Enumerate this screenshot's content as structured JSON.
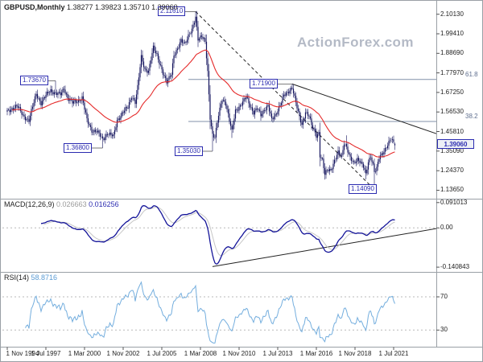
{
  "header": {
    "symbol": "GBPUSD,Monthly",
    "ohlc_text": "1.38277 1.39823 1.35710 1.39060"
  },
  "watermark": "ActionForex.com",
  "colors": {
    "candle": "#14145e",
    "ma_red": "#e52b2b",
    "macd_main": "#141499",
    "macd_signal": "#c6c6c6",
    "rsi_line": "#74aede",
    "fib_line": "#8090a8",
    "trendline": "#222222",
    "grid_dash": "#b8b8b8",
    "axis_line": "#9aa0a6",
    "label_blue": "#2b2bb0"
  },
  "chart_data": {
    "type": "candlestick",
    "symbol": "GBPUSD",
    "timeframe": "Monthly",
    "x_start": "1994-11",
    "x_end": "2021-08",
    "months_total": 322,
    "x_ticks": [
      {
        "label": "1 Nov 1994",
        "m": 0
      },
      {
        "label": "1 Jul 1997",
        "m": 32
      },
      {
        "label": "1 Mar 2000",
        "m": 64
      },
      {
        "label": "1 Nov 2002",
        "m": 96
      },
      {
        "label": "1 Jul 2005",
        "m": 128
      },
      {
        "label": "1 Mar 2008",
        "m": 160
      },
      {
        "label": "1 Nov 2010",
        "m": 192
      },
      {
        "label": "1 Jul 2013",
        "m": 224
      },
      {
        "label": "1 Mar 2016",
        "m": 256
      },
      {
        "label": "1 Nov 2018",
        "m": 288
      },
      {
        "label": "1 Jul 2021",
        "m": 320
      }
    ],
    "main": {
      "ylim": [
        1.09,
        2.175
      ],
      "y_ticks": [
        "2.10130",
        "1.99410",
        "1.88690",
        "1.77970",
        "1.67250",
        "1.56530",
        "1.45810",
        "1.35090",
        "1.24370",
        "1.13650"
      ],
      "current_price": "1.39060",
      "last_candle": {
        "open": 1.38277,
        "high": 1.39823,
        "low": 1.3571,
        "close": 1.3906
      },
      "ma": {
        "type": "EMA",
        "period": 45
      },
      "close_anchors": [
        [
          0,
          1.565
        ],
        [
          4,
          1.585
        ],
        [
          8,
          1.6
        ],
        [
          13,
          1.545
        ],
        [
          18,
          1.52
        ],
        [
          24,
          1.665
        ],
        [
          28,
          1.615
        ],
        [
          32,
          1.655
        ],
        [
          36,
          1.685
        ],
        [
          40,
          1.668
        ],
        [
          44,
          1.66
        ],
        [
          47,
          1.695
        ],
        [
          50,
          1.645
        ],
        [
          54,
          1.615
        ],
        [
          58,
          1.625
        ],
        [
          62,
          1.645
        ],
        [
          66,
          1.52
        ],
        [
          70,
          1.465
        ],
        [
          74,
          1.46
        ],
        [
          79,
          1.415
        ],
        [
          83,
          1.45
        ],
        [
          88,
          1.43
        ],
        [
          91,
          1.52
        ],
        [
          96,
          1.565
        ],
        [
          100,
          1.59
        ],
        [
          103,
          1.655
        ],
        [
          106,
          1.62
        ],
        [
          108,
          1.7
        ],
        [
          111,
          1.865
        ],
        [
          114,
          1.8
        ],
        [
          117,
          1.79
        ],
        [
          121,
          1.915
        ],
        [
          124,
          1.88
        ],
        [
          127,
          1.82
        ],
        [
          130,
          1.755
        ],
        [
          132,
          1.725
        ],
        [
          136,
          1.78
        ],
        [
          138,
          1.88
        ],
        [
          141,
          1.905
        ],
        [
          144,
          1.955
        ],
        [
          147,
          1.945
        ],
        [
          150,
          1.985
        ],
        [
          153,
          2.01
        ],
        [
          156,
          2.085
        ],
        [
          158,
          1.97
        ],
        [
          161,
          1.985
        ],
        [
          164,
          1.945
        ],
        [
          166,
          1.78
        ],
        [
          168,
          1.535
        ],
        [
          170,
          1.445
        ],
        [
          172,
          1.43
        ],
        [
          175,
          1.545
        ],
        [
          178,
          1.635
        ],
        [
          181,
          1.615
        ],
        [
          184,
          1.52
        ],
        [
          186,
          1.455
        ],
        [
          189,
          1.57
        ],
        [
          192,
          1.595
        ],
        [
          195,
          1.62
        ],
        [
          198,
          1.645
        ],
        [
          201,
          1.6
        ],
        [
          204,
          1.565
        ],
        [
          207,
          1.585
        ],
        [
          210,
          1.545
        ],
        [
          213,
          1.58
        ],
        [
          216,
          1.605
        ],
        [
          219,
          1.52
        ],
        [
          222,
          1.545
        ],
        [
          226,
          1.61
        ],
        [
          229,
          1.655
        ],
        [
          232,
          1.665
        ],
        [
          236,
          1.705
        ],
        [
          239,
          1.62
        ],
        [
          241,
          1.558
        ],
        [
          244,
          1.49
        ],
        [
          247,
          1.57
        ],
        [
          250,
          1.545
        ],
        [
          252,
          1.49
        ],
        [
          256,
          1.435
        ],
        [
          258,
          1.455
        ],
        [
          259,
          1.33
        ],
        [
          261,
          1.3
        ],
        [
          263,
          1.22
        ],
        [
          265,
          1.245
        ],
        [
          268,
          1.25
        ],
        [
          271,
          1.3
        ],
        [
          274,
          1.34
        ],
        [
          277,
          1.32
        ],
        [
          279,
          1.4
        ],
        [
          281,
          1.378
        ],
        [
          284,
          1.31
        ],
        [
          287,
          1.28
        ],
        [
          290,
          1.31
        ],
        [
          292,
          1.3
        ],
        [
          295,
          1.265
        ],
        [
          297,
          1.216
        ],
        [
          299,
          1.29
        ],
        [
          301,
          1.325
        ],
        [
          303,
          1.28
        ],
        [
          304,
          1.24
        ],
        [
          306,
          1.255
        ],
        [
          308,
          1.31
        ],
        [
          310,
          1.33
        ],
        [
          313,
          1.365
        ],
        [
          315,
          1.39
        ],
        [
          318,
          1.415
        ],
        [
          320,
          1.392
        ],
        [
          321,
          1.3906
        ]
      ],
      "forced_extremes": {
        "high": {
          "40": 1.7367,
          "156": 2.1161,
          "236": 1.719,
          "281": 1.4377,
          "318": 1.4237,
          "321": 1.39823
        },
        "low": {
          "79": 1.368,
          "170": 1.3503,
          "186": 1.423,
          "263": 1.1946,
          "297": 1.1959,
          "304": 1.1409,
          "321": 1.3571
        }
      },
      "price_labels": [
        {
          "text": "2.11610",
          "price": 2.1161,
          "box_month": 136,
          "point_month": 156
        },
        {
          "text": "1.73670",
          "price": 1.7367,
          "box_month": 22,
          "point_month": 40
        },
        {
          "text": "1.36800",
          "price": 1.368,
          "box_month": 58,
          "point_month": 79
        },
        {
          "text": "1.35030",
          "price": 1.3503,
          "box_month": 150,
          "point_month": 170
        },
        {
          "text": "1.71900",
          "price": 1.719,
          "box_month": 212,
          "point_month": 236
        },
        {
          "text": "1.14090",
          "price": 1.1409,
          "box_month": 294,
          "point_month": 304
        }
      ],
      "fib_levels": [
        {
          "text": "61.8",
          "price": 1.7436,
          "from_month": 150
        },
        {
          "text": "38.2",
          "price": 1.5134,
          "from_month": 150
        }
      ],
      "trendlines": [
        {
          "style": "dashed",
          "from": [
            156,
            2.1161
          ],
          "to": [
            304,
            1.1409
          ]
        },
        {
          "style": "solid",
          "from": [
            236,
            1.719
          ],
          "to": [
            356,
            1.445
          ]
        }
      ]
    },
    "macd": {
      "label": "MACD(12,26,9)",
      "value_main": "0.026663",
      "value_signal": "0.016256",
      "params": [
        12,
        26,
        9
      ],
      "ylim": [
        -0.158,
        0.105
      ],
      "y_ticks": [
        {
          "label": "0.091013",
          "value": 0.091013
        },
        {
          "label": "0.00",
          "value": 0
        },
        {
          "label": "-0.140843",
          "value": -0.140843
        }
      ],
      "zero_line": true,
      "trendline": {
        "from": [
          170,
          -0.139
        ],
        "to": [
          356,
          -0.002
        ]
      }
    },
    "rsi": {
      "label": "RSI(14)",
      "value": "58.8716",
      "period": 14,
      "ylim": [
        10,
        100
      ],
      "levels": [
        70,
        30
      ]
    }
  }
}
